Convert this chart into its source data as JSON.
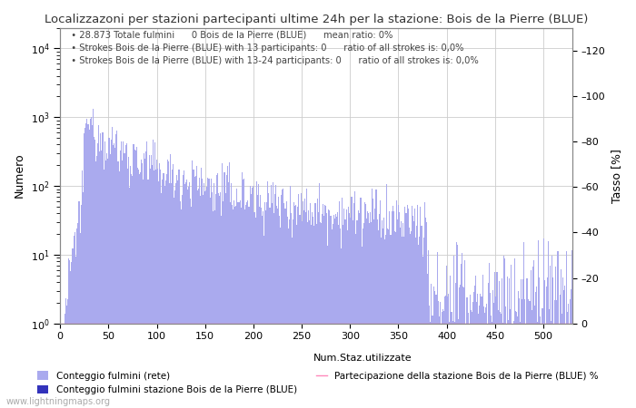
{
  "title": "Localizzazoni per stazioni partecipanti ultime 24h per la stazione: Bois de la Pierre (BLUE)",
  "xlabel": "Num.Staz.utilizzate",
  "ylabel_left": "Numero",
  "ylabel_right": "Tasso [%]",
  "annotation_lines": [
    "28.873 Totale fulmini      0 Bois de la Pierre (BLUE)      mean ratio: 0%",
    "Strokes Bois de la Pierre (BLUE) with 13 participants: 0      ratio of all strokes is: 0,0%",
    "Strokes Bois de la Pierre (BLUE) with 13-24 participants: 0      ratio of all strokes is: 0,0%"
  ],
  "yticks_right": [
    0,
    20,
    40,
    60,
    80,
    100,
    120
  ],
  "bar_color_light": "#aaaaee",
  "bar_color_dark": "#3333bb",
  "line_color": "#ff88bb",
  "background_color": "#ffffff",
  "legend_labels": [
    "Conteggio fulmini (rete)",
    "Conteggio fulmini stazione Bois de la Pierre (BLUE)",
    "Partecipazione della stazione Bois de la Pierre (BLUE) %"
  ],
  "watermark": "www.lightningmaps.org",
  "figsize": [
    7.0,
    4.5
  ],
  "dpi": 100
}
